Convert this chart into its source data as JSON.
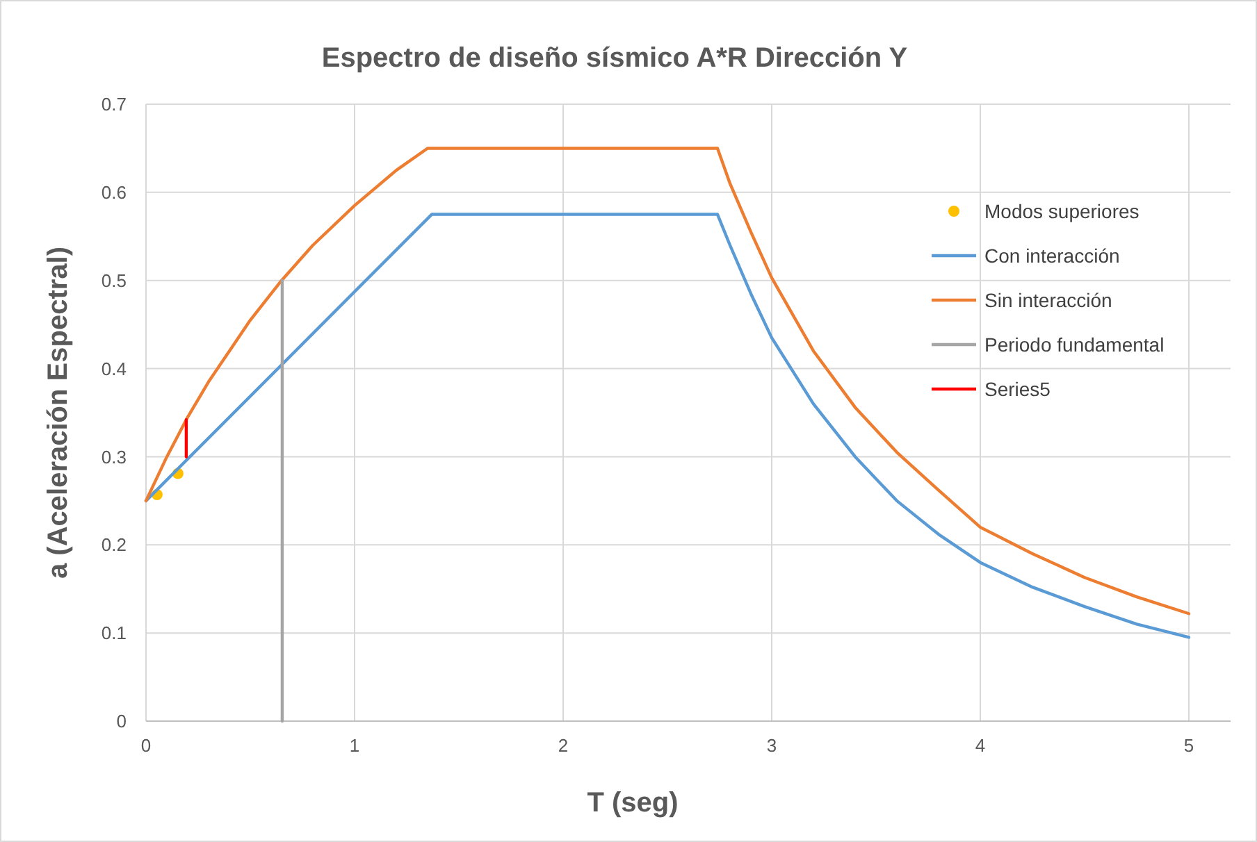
{
  "chart_data": {
    "type": "line",
    "title": "Espectro de diseño sísmico A*R Dirección Y",
    "xlabel": "T (seg)",
    "ylabel": "a (Aceleración Espectral)",
    "xlim": [
      0,
      5.2
    ],
    "ylim": [
      0,
      0.7
    ],
    "xticks": [
      0,
      1,
      2,
      3,
      4,
      5
    ],
    "yticks": [
      0,
      0.1,
      0.2,
      0.3,
      0.4,
      0.5,
      0.6,
      0.7
    ],
    "grid": true,
    "legend": "right",
    "marker": "none",
    "line_style": "solid",
    "series": [
      {
        "name": "Modos superiores",
        "type": "scatter",
        "marker": "circle",
        "color": "#ffc000",
        "x": [
          0.053,
          0.153
        ],
        "values": [
          0.257,
          0.281
        ]
      },
      {
        "name": "Con interacción",
        "color": "#5b9bd5",
        "x": [
          0,
          1.37,
          2.74,
          2.8,
          2.9,
          3.0,
          3.2,
          3.4,
          3.6,
          3.8,
          4.0,
          4.25,
          4.5,
          4.75,
          5.0
        ],
        "values": [
          0.25,
          0.575,
          0.575,
          0.54,
          0.485,
          0.435,
          0.36,
          0.3,
          0.25,
          0.212,
          0.18,
          0.152,
          0.13,
          0.11,
          0.095
        ]
      },
      {
        "name": "Sin interacción",
        "color": "#ed7d31",
        "x": [
          0,
          0.1,
          0.2,
          0.3,
          0.4,
          0.5,
          0.65,
          0.8,
          1.0,
          1.2,
          1.35,
          2.74,
          2.8,
          2.9,
          3.0,
          3.2,
          3.4,
          3.6,
          3.8,
          4.0,
          4.25,
          4.5,
          4.75,
          5.0
        ],
        "values": [
          0.25,
          0.3,
          0.345,
          0.385,
          0.42,
          0.455,
          0.5,
          0.54,
          0.585,
          0.625,
          0.65,
          0.65,
          0.61,
          0.555,
          0.503,
          0.42,
          0.356,
          0.305,
          0.262,
          0.22,
          0.19,
          0.163,
          0.141,
          0.122
        ]
      },
      {
        "name": "Periodo fundamental",
        "color": "#a5a5a5",
        "x": [
          0.653,
          0.653
        ],
        "values": [
          0,
          0.5
        ]
      },
      {
        "name": "Series5",
        "color": "#ff0000",
        "x": [
          0.193,
          0.193
        ],
        "values": [
          0.3,
          0.342
        ]
      }
    ]
  }
}
